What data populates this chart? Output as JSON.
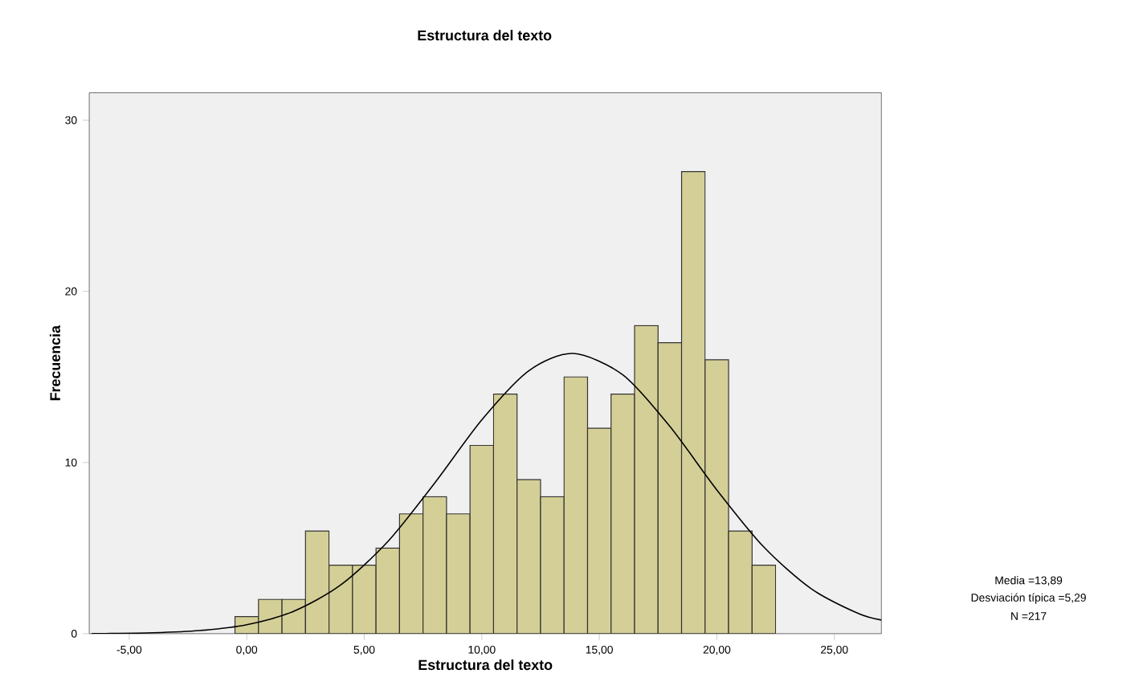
{
  "chart_data": {
    "type": "histogram",
    "title": "Estructura del texto",
    "xlabel": "Estructura del texto",
    "ylabel": "Frecuencia",
    "bins": [
      -0.5,
      0.5,
      1.5,
      2.5,
      3.5,
      4.5,
      5.5,
      6.5,
      7.5,
      8.5,
      9.5,
      10.5,
      11.5,
      12.5,
      13.5,
      14.5,
      15.5,
      16.5,
      17.5,
      18.5,
      19.5,
      20.5,
      21.5,
      22.5
    ],
    "values": [
      1,
      2,
      2,
      6,
      4,
      4,
      5,
      7,
      8,
      7,
      11,
      14,
      9,
      8,
      15,
      12,
      14,
      18,
      17,
      27,
      16,
      6,
      4
    ],
    "color": "#d4cf96",
    "series": [
      {
        "type": "line",
        "color": "#000000",
        "x": [
          -6.6,
          -6,
          -4,
          -2,
          0,
          2,
          4,
          6,
          8,
          10,
          12,
          13.89,
          16,
          18,
          20,
          22,
          24,
          26,
          27
        ],
        "values": [
          0.01,
          0.01,
          0.05,
          0.18,
          0.52,
          1.31,
          2.85,
          5.38,
          8.81,
          12.49,
          15.36,
          16.37,
          15.12,
          12.11,
          8.4,
          5.06,
          2.64,
          1.19,
          0.8
        ]
      }
    ],
    "xlim": [
      -6.7,
      27
    ],
    "ylim": [
      0,
      31.6
    ],
    "xticks": [
      {
        "value": -5,
        "label": "-5,00"
      },
      {
        "value": 0,
        "label": "0,00"
      },
      {
        "value": 5,
        "label": "5,00"
      },
      {
        "value": 10,
        "label": "10,00"
      },
      {
        "value": 15,
        "label": "15,00"
      },
      {
        "value": 20,
        "label": "20,00"
      },
      {
        "value": 25,
        "label": "25,00"
      }
    ],
    "yticks": [
      0,
      10,
      20,
      30
    ],
    "grid": false,
    "annotations": [
      "Media =13,89",
      "Desviación típica =5,29",
      "N =217"
    ]
  }
}
